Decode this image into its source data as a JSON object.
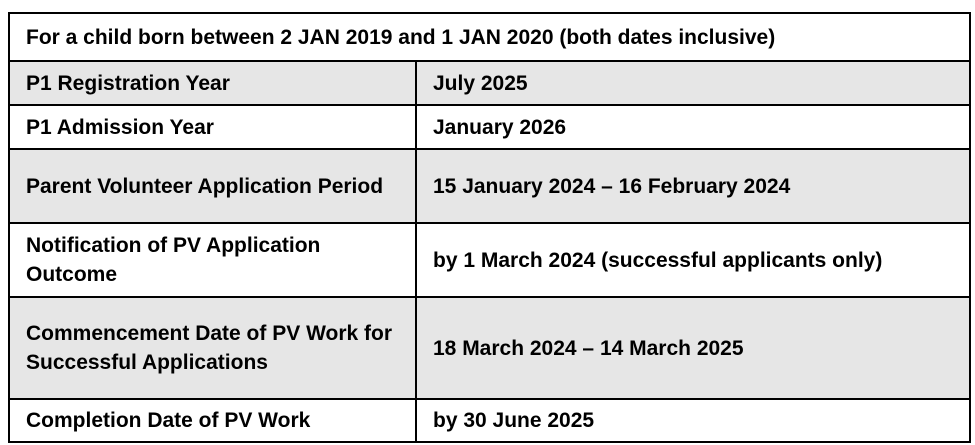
{
  "header": "For a child born between 2 JAN 2019 and 1 JAN 2020 (both dates inclusive)",
  "rows": [
    {
      "label": "P1 Registration Year",
      "value": "July 2025"
    },
    {
      "label": "P1 Admission Year",
      "value": "January 2026"
    },
    {
      "label": "Parent Volunteer Application Period",
      "value": "15 January 2024 – 16 February 2024"
    },
    {
      "label": "Notification of PV Application Outcome",
      "value": "by 1 March 2024 (successful applicants only)"
    },
    {
      "label": "Commencement Date of PV Work for Successful Applications",
      "value": "18 March 2024 – 14 March 2025"
    },
    {
      "label": "Completion Date of PV Work",
      "value": "by 30 June 2025"
    }
  ]
}
